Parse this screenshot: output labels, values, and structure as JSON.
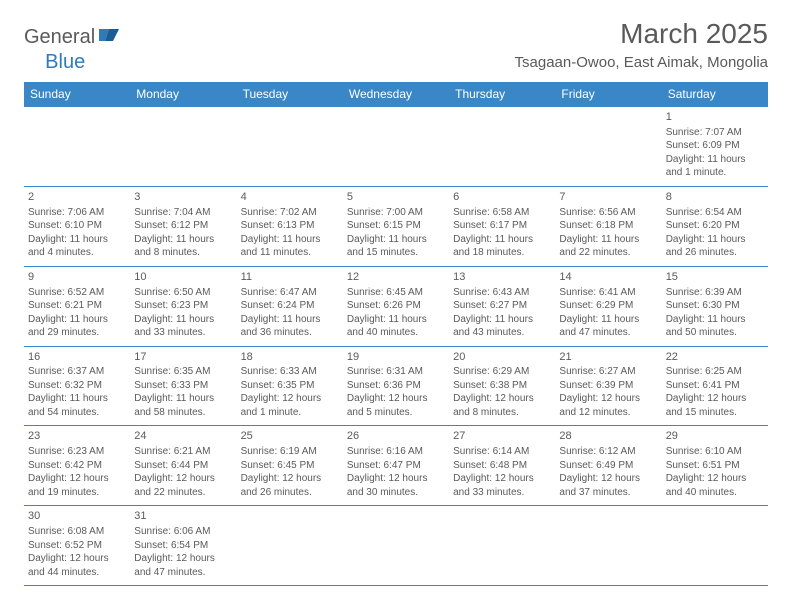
{
  "header": {
    "logo_part1": "General",
    "logo_part2": "Blue",
    "title": "March 2025",
    "subtitle": "Tsagaan-Owoo, East Aimak, Mongolia"
  },
  "colors": {
    "header_bg": "#3a87c8",
    "header_text": "#ffffff",
    "border": "#3a87c8",
    "body_text": "#5a5a5a",
    "logo_accent": "#2f7ab8"
  },
  "columns": [
    "Sunday",
    "Monday",
    "Tuesday",
    "Wednesday",
    "Thursday",
    "Friday",
    "Saturday"
  ],
  "weeks": [
    [
      null,
      null,
      null,
      null,
      null,
      null,
      {
        "n": "1",
        "sr": "Sunrise: 7:07 AM",
        "ss": "Sunset: 6:09 PM",
        "dl": "Daylight: 11 hours and 1 minute."
      }
    ],
    [
      {
        "n": "2",
        "sr": "Sunrise: 7:06 AM",
        "ss": "Sunset: 6:10 PM",
        "dl": "Daylight: 11 hours and 4 minutes."
      },
      {
        "n": "3",
        "sr": "Sunrise: 7:04 AM",
        "ss": "Sunset: 6:12 PM",
        "dl": "Daylight: 11 hours and 8 minutes."
      },
      {
        "n": "4",
        "sr": "Sunrise: 7:02 AM",
        "ss": "Sunset: 6:13 PM",
        "dl": "Daylight: 11 hours and 11 minutes."
      },
      {
        "n": "5",
        "sr": "Sunrise: 7:00 AM",
        "ss": "Sunset: 6:15 PM",
        "dl": "Daylight: 11 hours and 15 minutes."
      },
      {
        "n": "6",
        "sr": "Sunrise: 6:58 AM",
        "ss": "Sunset: 6:17 PM",
        "dl": "Daylight: 11 hours and 18 minutes."
      },
      {
        "n": "7",
        "sr": "Sunrise: 6:56 AM",
        "ss": "Sunset: 6:18 PM",
        "dl": "Daylight: 11 hours and 22 minutes."
      },
      {
        "n": "8",
        "sr": "Sunrise: 6:54 AM",
        "ss": "Sunset: 6:20 PM",
        "dl": "Daylight: 11 hours and 26 minutes."
      }
    ],
    [
      {
        "n": "9",
        "sr": "Sunrise: 6:52 AM",
        "ss": "Sunset: 6:21 PM",
        "dl": "Daylight: 11 hours and 29 minutes."
      },
      {
        "n": "10",
        "sr": "Sunrise: 6:50 AM",
        "ss": "Sunset: 6:23 PM",
        "dl": "Daylight: 11 hours and 33 minutes."
      },
      {
        "n": "11",
        "sr": "Sunrise: 6:47 AM",
        "ss": "Sunset: 6:24 PM",
        "dl": "Daylight: 11 hours and 36 minutes."
      },
      {
        "n": "12",
        "sr": "Sunrise: 6:45 AM",
        "ss": "Sunset: 6:26 PM",
        "dl": "Daylight: 11 hours and 40 minutes."
      },
      {
        "n": "13",
        "sr": "Sunrise: 6:43 AM",
        "ss": "Sunset: 6:27 PM",
        "dl": "Daylight: 11 hours and 43 minutes."
      },
      {
        "n": "14",
        "sr": "Sunrise: 6:41 AM",
        "ss": "Sunset: 6:29 PM",
        "dl": "Daylight: 11 hours and 47 minutes."
      },
      {
        "n": "15",
        "sr": "Sunrise: 6:39 AM",
        "ss": "Sunset: 6:30 PM",
        "dl": "Daylight: 11 hours and 50 minutes."
      }
    ],
    [
      {
        "n": "16",
        "sr": "Sunrise: 6:37 AM",
        "ss": "Sunset: 6:32 PM",
        "dl": "Daylight: 11 hours and 54 minutes."
      },
      {
        "n": "17",
        "sr": "Sunrise: 6:35 AM",
        "ss": "Sunset: 6:33 PM",
        "dl": "Daylight: 11 hours and 58 minutes."
      },
      {
        "n": "18",
        "sr": "Sunrise: 6:33 AM",
        "ss": "Sunset: 6:35 PM",
        "dl": "Daylight: 12 hours and 1 minute."
      },
      {
        "n": "19",
        "sr": "Sunrise: 6:31 AM",
        "ss": "Sunset: 6:36 PM",
        "dl": "Daylight: 12 hours and 5 minutes."
      },
      {
        "n": "20",
        "sr": "Sunrise: 6:29 AM",
        "ss": "Sunset: 6:38 PM",
        "dl": "Daylight: 12 hours and 8 minutes."
      },
      {
        "n": "21",
        "sr": "Sunrise: 6:27 AM",
        "ss": "Sunset: 6:39 PM",
        "dl": "Daylight: 12 hours and 12 minutes."
      },
      {
        "n": "22",
        "sr": "Sunrise: 6:25 AM",
        "ss": "Sunset: 6:41 PM",
        "dl": "Daylight: 12 hours and 15 minutes."
      }
    ],
    [
      {
        "n": "23",
        "sr": "Sunrise: 6:23 AM",
        "ss": "Sunset: 6:42 PM",
        "dl": "Daylight: 12 hours and 19 minutes."
      },
      {
        "n": "24",
        "sr": "Sunrise: 6:21 AM",
        "ss": "Sunset: 6:44 PM",
        "dl": "Daylight: 12 hours and 22 minutes."
      },
      {
        "n": "25",
        "sr": "Sunrise: 6:19 AM",
        "ss": "Sunset: 6:45 PM",
        "dl": "Daylight: 12 hours and 26 minutes."
      },
      {
        "n": "26",
        "sr": "Sunrise: 6:16 AM",
        "ss": "Sunset: 6:47 PM",
        "dl": "Daylight: 12 hours and 30 minutes."
      },
      {
        "n": "27",
        "sr": "Sunrise: 6:14 AM",
        "ss": "Sunset: 6:48 PM",
        "dl": "Daylight: 12 hours and 33 minutes."
      },
      {
        "n": "28",
        "sr": "Sunrise: 6:12 AM",
        "ss": "Sunset: 6:49 PM",
        "dl": "Daylight: 12 hours and 37 minutes."
      },
      {
        "n": "29",
        "sr": "Sunrise: 6:10 AM",
        "ss": "Sunset: 6:51 PM",
        "dl": "Daylight: 12 hours and 40 minutes."
      }
    ],
    [
      {
        "n": "30",
        "sr": "Sunrise: 6:08 AM",
        "ss": "Sunset: 6:52 PM",
        "dl": "Daylight: 12 hours and 44 minutes."
      },
      {
        "n": "31",
        "sr": "Sunrise: 6:06 AM",
        "ss": "Sunset: 6:54 PM",
        "dl": "Daylight: 12 hours and 47 minutes."
      },
      null,
      null,
      null,
      null,
      null
    ]
  ]
}
